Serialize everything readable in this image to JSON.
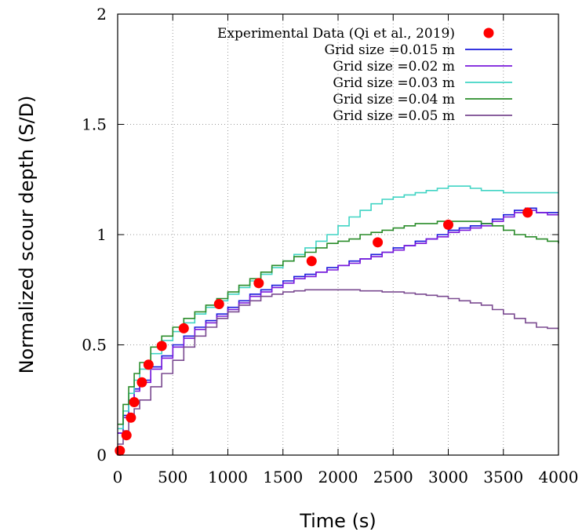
{
  "chart_data": {
    "type": "line",
    "title": "",
    "xlabel": "Time (s)",
    "ylabel": "Normalized scour depth (S/D)",
    "xlim": [
      0,
      4000
    ],
    "ylim": [
      0,
      2
    ],
    "xticks": [
      0,
      500,
      1000,
      1500,
      2000,
      2500,
      3000,
      3500,
      4000
    ],
    "yticks": [
      0,
      0.5,
      1,
      1.5,
      2
    ],
    "ytick_labels": [
      "0",
      "0.5",
      "1",
      "1.5",
      "2"
    ],
    "grid": true,
    "legend_position": "top-right",
    "experimental": {
      "name": "Experimental Data (Qi et al., 2019)",
      "color": "#ff0000",
      "x": [
        20,
        80,
        120,
        150,
        220,
        280,
        400,
        600,
        920,
        1280,
        1760,
        2360,
        3000,
        3720
      ],
      "y": [
        0.02,
        0.09,
        0.17,
        0.24,
        0.33,
        0.41,
        0.495,
        0.575,
        0.685,
        0.78,
        0.88,
        0.965,
        1.045,
        1.1
      ]
    },
    "series": [
      {
        "name": "Grid size =0.015 m",
        "color": "#1a1adb",
        "x": [
          0,
          50,
          100,
          150,
          200,
          300,
          400,
          500,
          600,
          700,
          800,
          900,
          1000,
          1100,
          1200,
          1300,
          1400,
          1500,
          1600,
          1700,
          1800,
          1900,
          2000,
          2100,
          2200,
          2300,
          2400,
          2500,
          2600,
          2700,
          2800,
          2900,
          3000,
          3100,
          3200,
          3300,
          3400,
          3500,
          3600,
          3700,
          3800,
          3900,
          4000
        ],
        "y": [
          0.1,
          0.18,
          0.25,
          0.3,
          0.34,
          0.4,
          0.45,
          0.5,
          0.54,
          0.58,
          0.61,
          0.64,
          0.67,
          0.7,
          0.73,
          0.75,
          0.77,
          0.79,
          0.81,
          0.82,
          0.83,
          0.85,
          0.86,
          0.88,
          0.89,
          0.91,
          0.92,
          0.94,
          0.95,
          0.97,
          0.98,
          1.0,
          1.02,
          1.03,
          1.04,
          1.05,
          1.07,
          1.09,
          1.11,
          1.12,
          1.1,
          1.1,
          1.1
        ]
      },
      {
        "name": "Grid size =0.02 m",
        "color": "#7a1adb",
        "x": [
          0,
          50,
          100,
          150,
          200,
          300,
          400,
          500,
          600,
          700,
          800,
          900,
          1000,
          1100,
          1200,
          1300,
          1400,
          1500,
          1600,
          1700,
          1800,
          1900,
          2000,
          2100,
          2200,
          2300,
          2400,
          2500,
          2600,
          2700,
          2800,
          2900,
          3000,
          3100,
          3200,
          3300,
          3400,
          3500,
          3600,
          3700,
          3800,
          3900,
          4000
        ],
        "y": [
          0.1,
          0.17,
          0.24,
          0.29,
          0.33,
          0.39,
          0.44,
          0.49,
          0.53,
          0.57,
          0.6,
          0.63,
          0.66,
          0.69,
          0.72,
          0.74,
          0.76,
          0.78,
          0.8,
          0.81,
          0.83,
          0.84,
          0.86,
          0.87,
          0.89,
          0.9,
          0.92,
          0.93,
          0.95,
          0.96,
          0.98,
          0.99,
          1.01,
          1.02,
          1.03,
          1.04,
          1.06,
          1.08,
          1.1,
          1.11,
          1.1,
          1.09,
          1.09
        ]
      },
      {
        "name": "Grid size =0.03 m",
        "color": "#40d4c4",
        "x": [
          0,
          50,
          100,
          150,
          200,
          300,
          400,
          500,
          600,
          700,
          800,
          900,
          1000,
          1100,
          1200,
          1300,
          1400,
          1500,
          1600,
          1700,
          1800,
          1900,
          2000,
          2100,
          2200,
          2300,
          2400,
          2500,
          2600,
          2700,
          2800,
          2900,
          3000,
          3100,
          3200,
          3300,
          3400,
          3500,
          3600,
          3700,
          3800,
          3900,
          4000
        ],
        "y": [
          0.12,
          0.2,
          0.28,
          0.34,
          0.39,
          0.46,
          0.52,
          0.56,
          0.6,
          0.64,
          0.67,
          0.7,
          0.73,
          0.76,
          0.79,
          0.82,
          0.85,
          0.88,
          0.91,
          0.94,
          0.97,
          1.0,
          1.04,
          1.08,
          1.11,
          1.14,
          1.16,
          1.17,
          1.18,
          1.19,
          1.2,
          1.21,
          1.22,
          1.22,
          1.21,
          1.2,
          1.2,
          1.19,
          1.19,
          1.19,
          1.19,
          1.19,
          1.19
        ]
      },
      {
        "name": "Grid size =0.04 m",
        "color": "#2a8c2a",
        "x": [
          0,
          50,
          100,
          150,
          200,
          300,
          400,
          500,
          600,
          700,
          800,
          900,
          1000,
          1100,
          1200,
          1300,
          1400,
          1500,
          1600,
          1700,
          1800,
          1900,
          2000,
          2100,
          2200,
          2300,
          2400,
          2500,
          2600,
          2700,
          2800,
          2900,
          3000,
          3100,
          3200,
          3300,
          3400,
          3500,
          3600,
          3700,
          3800,
          3900,
          4000
        ],
        "y": [
          0.14,
          0.23,
          0.31,
          0.37,
          0.42,
          0.49,
          0.54,
          0.58,
          0.62,
          0.65,
          0.68,
          0.71,
          0.74,
          0.77,
          0.8,
          0.83,
          0.86,
          0.88,
          0.9,
          0.92,
          0.94,
          0.96,
          0.97,
          0.98,
          1.0,
          1.01,
          1.02,
          1.03,
          1.04,
          1.05,
          1.05,
          1.06,
          1.06,
          1.06,
          1.06,
          1.05,
          1.04,
          1.02,
          1.0,
          0.99,
          0.98,
          0.97,
          0.96
        ]
      },
      {
        "name": "Grid size =0.05 m",
        "color": "#7a4a90",
        "x": [
          0,
          50,
          100,
          150,
          200,
          300,
          400,
          500,
          600,
          700,
          800,
          900,
          1000,
          1100,
          1200,
          1300,
          1400,
          1500,
          1600,
          1700,
          1800,
          1900,
          2000,
          2100,
          2200,
          2300,
          2400,
          2500,
          2600,
          2700,
          2800,
          2900,
          3000,
          3100,
          3200,
          3300,
          3400,
          3500,
          3600,
          3700,
          3800,
          3900,
          4000
        ],
        "y": [
          0.05,
          0.11,
          0.17,
          0.21,
          0.25,
          0.31,
          0.37,
          0.43,
          0.49,
          0.54,
          0.58,
          0.62,
          0.65,
          0.68,
          0.7,
          0.72,
          0.73,
          0.74,
          0.745,
          0.75,
          0.75,
          0.75,
          0.75,
          0.75,
          0.745,
          0.745,
          0.74,
          0.74,
          0.735,
          0.73,
          0.725,
          0.72,
          0.71,
          0.7,
          0.69,
          0.68,
          0.66,
          0.64,
          0.62,
          0.6,
          0.58,
          0.575,
          0.575
        ]
      }
    ]
  }
}
